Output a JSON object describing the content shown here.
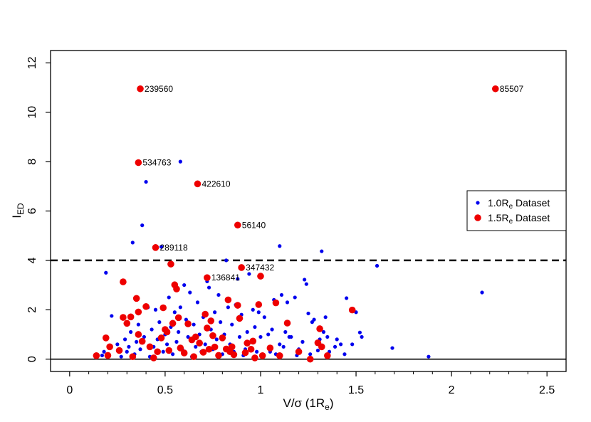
{
  "chart_data": {
    "type": "scatter",
    "title": "",
    "xlabel": "V/σ (1R",
    "xlabel_sub": "e",
    "xlabel_end": ")",
    "ylabel": "I",
    "ylabel_sub": "ED",
    "xlim": [
      -0.1,
      2.6
    ],
    "ylim": [
      -0.5,
      12.5
    ],
    "xticks": [
      0,
      0.5,
      1,
      1.5,
      2,
      2.5
    ],
    "xtick_labels": [
      "0",
      "0.5",
      "1",
      "1.5",
      "2",
      "2.5"
    ],
    "yticks": [
      0,
      2,
      4,
      6,
      8,
      10,
      12
    ],
    "ytick_labels": [
      "0",
      "2",
      "4",
      "6",
      "8",
      "10",
      "12"
    ],
    "hlines": [
      {
        "y": 4,
        "style": "dashed"
      },
      {
        "y": 0,
        "style": "solid"
      }
    ],
    "legend": {
      "position": "right",
      "entries": [
        {
          "name": "1.0R",
          "sub": "e",
          "suffix": " Dataset",
          "color": "#0000ee"
        },
        {
          "name": "1.5R",
          "sub": "e",
          "suffix": " Dataset",
          "color": "#ee0000"
        }
      ]
    },
    "series": [
      {
        "name": "1.0Re Dataset",
        "color": "#0000ee",
        "marker_size": "small",
        "points": [
          [
            0.19,
            3.5
          ],
          [
            0.22,
            1.75
          ],
          [
            0.33,
            4.72
          ],
          [
            0.38,
            5.42
          ],
          [
            0.4,
            7.18
          ],
          [
            0.58,
            8.0
          ],
          [
            0.41,
            2.1
          ],
          [
            0.48,
            4.55
          ],
          [
            0.6,
            3.0
          ],
          [
            0.72,
            3.15
          ],
          [
            0.82,
            4.0
          ],
          [
            0.88,
            3.25
          ],
          [
            0.94,
            3.45
          ],
          [
            1.1,
            4.58
          ],
          [
            1.23,
            3.22
          ],
          [
            1.24,
            3.04
          ],
          [
            1.32,
            4.37
          ],
          [
            1.61,
            3.78
          ],
          [
            2.16,
            2.7
          ],
          [
            1.45,
            2.47
          ],
          [
            1.5,
            1.9
          ],
          [
            1.52,
            1.08
          ],
          [
            1.53,
            0.9
          ],
          [
            1.69,
            0.45
          ],
          [
            1.88,
            0.1
          ],
          [
            1.42,
            0.6
          ],
          [
            1.39,
            0.5
          ],
          [
            1.36,
            0.3
          ],
          [
            1.33,
            1.1
          ],
          [
            1.31,
            0.8
          ],
          [
            1.28,
            1.6
          ],
          [
            1.27,
            1.5
          ],
          [
            1.25,
            1.85
          ],
          [
            1.22,
            0.7
          ],
          [
            1.2,
            0.4
          ],
          [
            1.18,
            2.5
          ],
          [
            1.16,
            0.9
          ],
          [
            1.14,
            2.3
          ],
          [
            1.13,
            1.1
          ],
          [
            1.11,
            2.6
          ],
          [
            1.1,
            0.6
          ],
          [
            1.08,
            0.2
          ],
          [
            1.06,
            1.2
          ],
          [
            1.04,
            1.0
          ],
          [
            1.02,
            1.7
          ],
          [
            1.0,
            0.9
          ],
          [
            0.98,
            0.3
          ],
          [
            0.97,
            1.3
          ],
          [
            0.96,
            2.0
          ],
          [
            0.95,
            0.7
          ],
          [
            0.93,
            1.1
          ],
          [
            0.92,
            0.4
          ],
          [
            0.9,
            1.8
          ],
          [
            0.89,
            0.9
          ],
          [
            0.87,
            2.2
          ],
          [
            0.86,
            0.3
          ],
          [
            0.85,
            1.4
          ],
          [
            0.84,
            0.6
          ],
          [
            0.83,
            2.1
          ],
          [
            0.81,
            1.0
          ],
          [
            0.8,
            0.2
          ],
          [
            0.79,
            1.5
          ],
          [
            0.78,
            2.6
          ],
          [
            0.77,
            0.8
          ],
          [
            0.76,
            1.9
          ],
          [
            0.75,
            0.4
          ],
          [
            0.74,
            1.2
          ],
          [
            0.73,
            2.9
          ],
          [
            0.71,
            0.6
          ],
          [
            0.7,
            1.7
          ],
          [
            0.69,
            0.3
          ],
          [
            0.68,
            1.0
          ],
          [
            0.67,
            2.3
          ],
          [
            0.66,
            0.5
          ],
          [
            0.65,
            1.4
          ],
          [
            0.64,
            0.1
          ],
          [
            0.63,
            2.7
          ],
          [
            0.62,
            0.9
          ],
          [
            0.61,
            1.6
          ],
          [
            0.59,
            0.4
          ],
          [
            0.58,
            2.1
          ],
          [
            0.57,
            1.1
          ],
          [
            0.56,
            0.7
          ],
          [
            0.55,
            1.9
          ],
          [
            0.54,
            0.2
          ],
          [
            0.53,
            1.3
          ],
          [
            0.52,
            2.5
          ],
          [
            0.51,
            0.6
          ],
          [
            0.5,
            1.0
          ],
          [
            0.49,
            0.3
          ],
          [
            0.47,
            1.5
          ],
          [
            0.46,
            0.8
          ],
          [
            0.45,
            2.0
          ],
          [
            0.44,
            0.5
          ],
          [
            0.43,
            1.2
          ],
          [
            0.42,
            0.1
          ],
          [
            0.39,
            0.9
          ],
          [
            0.37,
            0.4
          ],
          [
            0.36,
            1.4
          ],
          [
            0.35,
            0.7
          ],
          [
            0.34,
            0.2
          ],
          [
            0.32,
            1.1
          ],
          [
            0.31,
            0.5
          ],
          [
            0.3,
            0.3
          ],
          [
            0.29,
            0.8
          ],
          [
            0.27,
            0.1
          ],
          [
            0.25,
            0.6
          ],
          [
            0.18,
            0.3
          ],
          [
            0.17,
            0.15
          ],
          [
            1.26,
            0.2
          ],
          [
            1.35,
            0.9
          ],
          [
            1.44,
            0.2
          ],
          [
            1.48,
            0.6
          ],
          [
            1.05,
            0.3
          ],
          [
            0.91,
            0.15
          ],
          [
            1.12,
            0.5
          ],
          [
            1.19,
            0.15
          ],
          [
            1.3,
            0.35
          ],
          [
            1.34,
            1.7
          ],
          [
            1.4,
            0.8
          ],
          [
            1.07,
            2.4
          ],
          [
            0.99,
            1.9
          ],
          [
            1.15,
            0.9
          ]
        ]
      },
      {
        "name": "1.5Re Dataset",
        "color": "#ee0000",
        "marker_size": "large",
        "points": [
          [
            0.14,
            0.14
          ],
          [
            0.19,
            0.86
          ],
          [
            0.21,
            0.5
          ],
          [
            0.28,
            3.13
          ],
          [
            0.28,
            1.69
          ],
          [
            0.3,
            1.45
          ],
          [
            0.32,
            1.71
          ],
          [
            0.35,
            2.46
          ],
          [
            0.36,
            1.91
          ],
          [
            0.36,
            1.0
          ],
          [
            0.38,
            0.72
          ],
          [
            0.4,
            2.13
          ],
          [
            0.42,
            0.5
          ],
          [
            0.46,
            0.3
          ],
          [
            0.48,
            0.86
          ],
          [
            0.49,
            2.08
          ],
          [
            0.5,
            1.2
          ],
          [
            0.51,
            1.1
          ],
          [
            0.53,
            3.85
          ],
          [
            0.55,
            3.01
          ],
          [
            0.56,
            2.84
          ],
          [
            0.57,
            1.68
          ],
          [
            0.58,
            0.45
          ],
          [
            0.6,
            0.25
          ],
          [
            0.62,
            1.43
          ],
          [
            0.64,
            0.78
          ],
          [
            0.66,
            0.9
          ],
          [
            0.68,
            0.65
          ],
          [
            0.7,
            0.28
          ],
          [
            0.71,
            1.82
          ],
          [
            0.72,
            1.26
          ],
          [
            0.73,
            0.4
          ],
          [
            0.74,
            1.55
          ],
          [
            0.76,
            0.49
          ],
          [
            0.78,
            0.15
          ],
          [
            0.8,
            0.86
          ],
          [
            0.82,
            0.41
          ],
          [
            0.84,
            0.3
          ],
          [
            0.85,
            0.5
          ],
          [
            0.86,
            0.18
          ],
          [
            0.88,
            2.18
          ],
          [
            0.89,
            1.65
          ],
          [
            0.92,
            0.26
          ],
          [
            0.93,
            0.65
          ],
          [
            0.95,
            0.4
          ],
          [
            0.96,
            0.73
          ],
          [
            0.99,
            2.21
          ],
          [
            1.01,
            0.14
          ],
          [
            1.08,
            2.28
          ],
          [
            1.1,
            0.14
          ],
          [
            1.14,
            1.46
          ],
          [
            1.26,
            0.0
          ],
          [
            1.3,
            0.66
          ],
          [
            1.31,
            1.23
          ],
          [
            1.32,
            0.5
          ],
          [
            1.35,
            0.14
          ],
          [
            1.48,
            1.99
          ],
          [
            1.0,
            3.36
          ],
          [
            0.72,
            3.3
          ],
          [
            0.9,
            3.71
          ],
          [
            0.45,
            4.52
          ],
          [
            0.88,
            5.43
          ],
          [
            0.67,
            7.1
          ],
          [
            0.36,
            7.96
          ],
          [
            0.37,
            10.95
          ],
          [
            2.23,
            10.95
          ],
          [
            0.2,
            0.15
          ],
          [
            0.26,
            0.35
          ],
          [
            0.33,
            0.1
          ],
          [
            0.44,
            0.05
          ],
          [
            0.52,
            0.35
          ],
          [
            0.54,
            1.45
          ],
          [
            0.65,
            0.1
          ],
          [
            0.75,
            0.95
          ],
          [
            0.83,
            2.4
          ],
          [
            0.97,
            0.05
          ],
          [
            1.05,
            0.45
          ],
          [
            1.2,
            0.3
          ]
        ]
      }
    ],
    "annotations": [
      {
        "label": "239560",
        "x": 0.37,
        "y": 10.95
      },
      {
        "label": "85507",
        "x": 2.23,
        "y": 10.95
      },
      {
        "label": "534763",
        "x": 0.36,
        "y": 7.96
      },
      {
        "label": "422610",
        "x": 0.67,
        "y": 7.1
      },
      {
        "label": "56140",
        "x": 0.88,
        "y": 5.43
      },
      {
        "label": "289118",
        "x": 0.45,
        "y": 4.52
      },
      {
        "label": "347432",
        "x": 0.9,
        "y": 3.71
      },
      {
        "label": "136841",
        "x": 0.72,
        "y": 3.3
      }
    ]
  }
}
